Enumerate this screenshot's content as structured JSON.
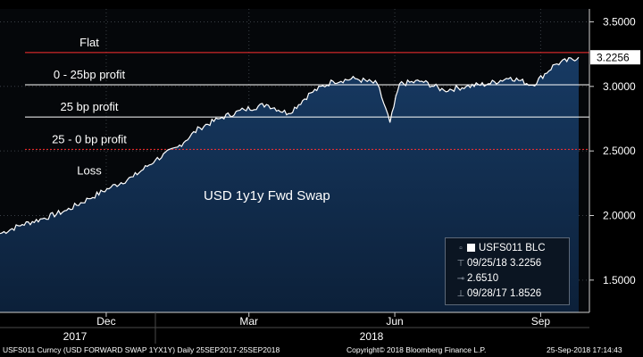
{
  "chart_data": {
    "type": "area",
    "title": "USD 1y1y Fwd Swap",
    "x_range": [
      "2017-09-25",
      "2018-09-25"
    ],
    "ylim": [
      1.25,
      3.6
    ],
    "y_ticks": [
      "3.5000",
      "3.0000",
      "2.5000",
      "2.0000",
      "1.5000"
    ],
    "x_ticks": [
      "Dec",
      "Mar",
      "Jun",
      "Sep"
    ],
    "year_labels": [
      "2017",
      "2018"
    ],
    "last_value_label": "3.2256",
    "zones": [
      {
        "label": "Flat",
        "level": 3.2626,
        "color": "#ff3030",
        "style": "solid"
      },
      {
        "label": "0 - 25bp profit",
        "level": 3.0126,
        "color": "#ffffff",
        "style": "solid"
      },
      {
        "label": "25 bp profit",
        "level": 2.7626,
        "color": "#ffffff",
        "style": "solid"
      },
      {
        "label": "25 - 0 bp profit",
        "level": 2.5126,
        "color": "#ff3030",
        "style": "dashed"
      },
      {
        "label": "Loss",
        "level": null
      }
    ],
    "series": [
      {
        "x": [
          "2017-09-25",
          "2017-10-09",
          "2017-10-23",
          "2017-11-06",
          "2017-11-20",
          "2017-12-04",
          "2017-12-18",
          "2018-01-01",
          "2018-01-15",
          "2018-01-29",
          "2018-02-12",
          "2018-02-26",
          "2018-03-12",
          "2018-03-26",
          "2018-04-09",
          "2018-04-23",
          "2018-05-07",
          "2018-05-21",
          "2018-05-29",
          "2018-06-04",
          "2018-06-18",
          "2018-07-02",
          "2018-07-16",
          "2018-07-30",
          "2018-08-13",
          "2018-08-27",
          "2018-09-10",
          "2018-09-25"
        ],
        "values": [
          1.86,
          1.93,
          1.98,
          2.04,
          2.13,
          2.22,
          2.3,
          2.43,
          2.53,
          2.68,
          2.76,
          2.82,
          2.86,
          2.79,
          2.95,
          3.04,
          3.06,
          3.02,
          2.72,
          3.02,
          3.04,
          2.97,
          3.0,
          3.02,
          3.07,
          3.01,
          3.17,
          3.2256
        ],
        "color": "#ffffff",
        "fill": "#0e2a4a"
      }
    ]
  },
  "legend": {
    "title": "USFS011 BLC",
    "last": "09/25/18 3.2256",
    "mid": "2.6510",
    "first": "09/28/17 1.8526"
  },
  "footer": {
    "ticker": "USFS011 Curncy (USD FORWARD SWAP   1YX1Y)  Daily 25SEP2017-25SEP2018",
    "copyright": "Copyright© 2018 Bloomberg Finance L.P.",
    "timestamp": "25-Sep-2018 17:14:43"
  }
}
